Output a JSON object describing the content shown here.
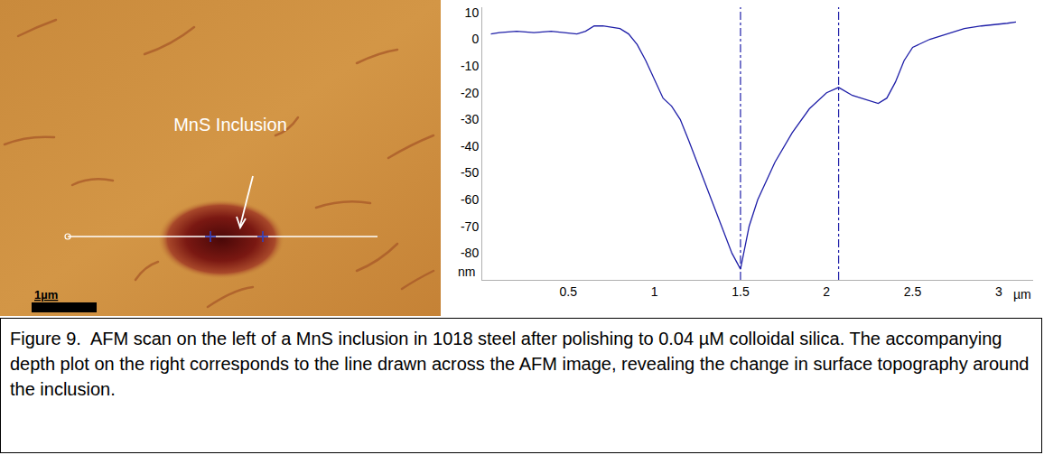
{
  "image": {
    "annotation": "MnS Inclusion",
    "scale_bar": "1µm"
  },
  "chart_data": {
    "type": "line",
    "x": [
      0.05,
      0.1,
      0.2,
      0.3,
      0.4,
      0.5,
      0.55,
      0.6,
      0.65,
      0.7,
      0.8,
      0.85,
      0.9,
      0.95,
      1.0,
      1.05,
      1.1,
      1.15,
      1.2,
      1.3,
      1.4,
      1.45,
      1.5,
      1.55,
      1.6,
      1.7,
      1.8,
      1.9,
      2.0,
      2.07,
      2.15,
      2.2,
      2.3,
      2.35,
      2.4,
      2.45,
      2.5,
      2.6,
      2.7,
      2.8,
      2.9,
      3.0,
      3.05,
      3.1
    ],
    "values": [
      2,
      2.5,
      3,
      2.5,
      3,
      2.5,
      2,
      3,
      5,
      5,
      4,
      2,
      -2,
      -8,
      -15,
      -22,
      -25,
      -30,
      -38,
      -55,
      -72,
      -80,
      -86,
      -70,
      -60,
      -46,
      -35,
      -26,
      -20,
      -18,
      -21,
      -22,
      -24,
      -22,
      -16,
      -8,
      -3,
      0,
      2,
      4,
      5,
      5.5,
      6,
      6.5
    ],
    "color": "#1f1fa8",
    "line_style": "solid",
    "x_label": "µm",
    "y_label": "nm",
    "xlim": [
      0,
      3.2
    ],
    "xticks": [
      0.5,
      1,
      1.5,
      2,
      2.5,
      3
    ],
    "ylim": [
      -90,
      12
    ],
    "yticks": [
      10,
      0,
      -10,
      -20,
      -30,
      -40,
      -50,
      -60,
      -70,
      -80
    ],
    "grid": false,
    "cursor_lines": [
      1.5,
      2.07
    ]
  },
  "caption": "Figure 9.  AFM scan on the left of a MnS inclusion in 1018 steel after polishing to 0.04 µM colloidal silica. The accompanying depth plot on the right corresponds to the line drawn across the AFM image, revealing the change in surface topography around the inclusion."
}
